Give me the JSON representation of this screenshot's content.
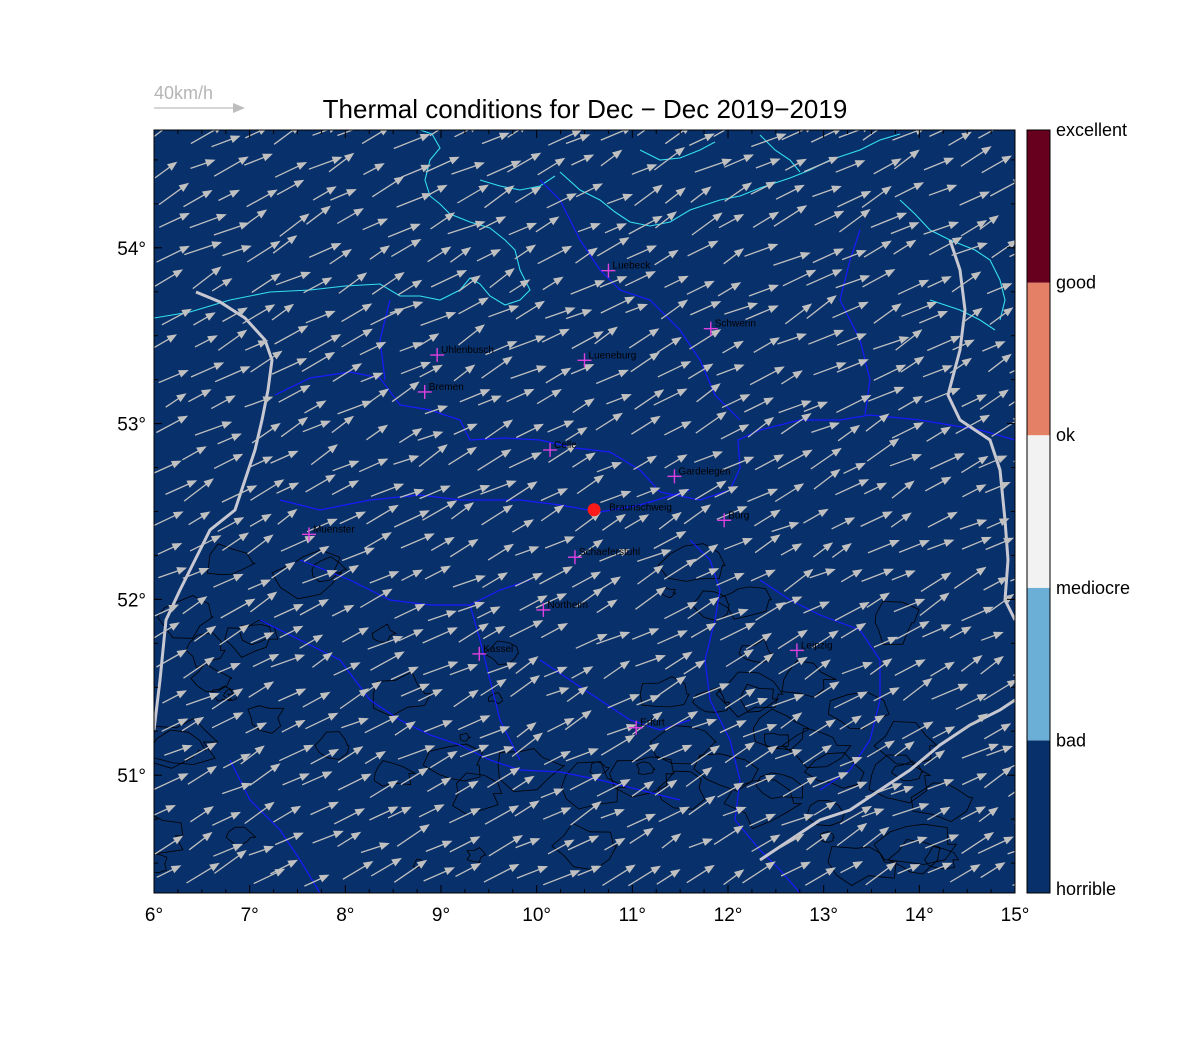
{
  "title": "Thermal conditions for Dec − Dec  2019−2019",
  "wind_scale": {
    "label": "40km/h",
    "arrow_color": "#bdbdbd"
  },
  "map": {
    "background_color": "#08306b",
    "lon_range": [
      6,
      15
    ],
    "lat_range": [
      50.33,
      54.67
    ],
    "x_ticks": [
      "6°",
      "7°",
      "8°",
      "9°",
      "10°",
      "11°",
      "12°",
      "13°",
      "14°",
      "15°"
    ],
    "y_ticks": [
      "54°",
      "53°",
      "52°",
      "51°"
    ],
    "coast_color": "#33e0f0",
    "border_color": "#1a1aff",
    "contour_color": "#000000",
    "wind_direction_deg": 62,
    "cities": [
      {
        "name": "Luebeck",
        "lon": 10.75,
        "lat": 53.87
      },
      {
        "name": "Schwerin",
        "lon": 11.82,
        "lat": 53.54
      },
      {
        "name": "Uhlenbusch",
        "lon": 8.96,
        "lat": 53.39
      },
      {
        "name": "Lueneburg",
        "lon": 10.5,
        "lat": 53.36
      },
      {
        "name": "Bremen",
        "lon": 8.83,
        "lat": 53.18
      },
      {
        "name": "Celle",
        "lon": 10.14,
        "lat": 52.85
      },
      {
        "name": "Gardelegen",
        "lon": 11.44,
        "lat": 52.7
      },
      {
        "name": "Braunschweig",
        "lon": 10.6,
        "lat": 52.51,
        "marker": "dot"
      },
      {
        "name": "Burg",
        "lon": 11.96,
        "lat": 52.45
      },
      {
        "name": "Muenster",
        "lon": 7.62,
        "lat": 52.37
      },
      {
        "name": "Schaeferstuhl",
        "lon": 10.4,
        "lat": 52.24
      },
      {
        "name": "Northeim",
        "lon": 10.07,
        "lat": 51.94
      },
      {
        "name": "Kassel",
        "lon": 9.4,
        "lat": 51.69
      },
      {
        "name": "Leipzig",
        "lon": 12.72,
        "lat": 51.71
      },
      {
        "name": "Erfurt",
        "lon": 11.04,
        "lat": 51.27
      }
    ]
  },
  "colorbar": {
    "bins": [
      {
        "color": "#08306b"
      },
      {
        "color": "#6baed6"
      },
      {
        "color": "#f2f2f2"
      },
      {
        "color": "#e48065"
      },
      {
        "color": "#67001f"
      }
    ],
    "labels": [
      "horrible",
      "bad",
      "mediocre",
      "ok",
      "good",
      "excellent"
    ]
  }
}
